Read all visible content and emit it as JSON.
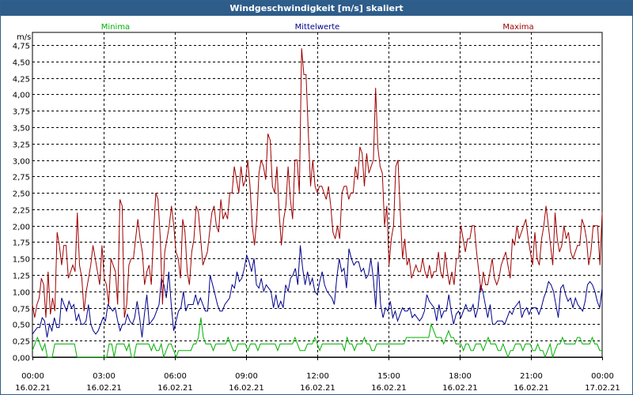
{
  "window": {
    "title": "Windgeschwindigkeit [m/s] skaliert"
  },
  "colors": {
    "min": "#00b000",
    "mean": "#00008b",
    "max": "#a00000",
    "grid": "#000000",
    "titlebar": "#2e5d8a"
  },
  "chart_data": {
    "type": "line",
    "title": "Windgeschwindigkeit [m/s] skaliert",
    "ylabel": "m/s",
    "xlabel": "",
    "ylim": [
      0,
      4.75
    ],
    "grid": true,
    "yticks": [
      0,
      0.25,
      0.5,
      0.75,
      1.0,
      1.25,
      1.5,
      1.75,
      2.0,
      2.25,
      2.5,
      2.75,
      3.0,
      3.25,
      3.5,
      3.75,
      4.0,
      4.25,
      4.5,
      4.75
    ],
    "ytick_labels": [
      "0,00",
      "0,25",
      "0,50",
      "0,75",
      "1,00",
      "1,25",
      "1,50",
      "1,75",
      "2,00",
      "2,25",
      "2,50",
      "2,75",
      "3,00",
      "3,25",
      "3,50",
      "3,75",
      "4,00",
      "4,25",
      "4,50",
      "4,75"
    ],
    "xticks": [
      {
        "time": "00:00",
        "date": "16.02.21"
      },
      {
        "time": "03:00",
        "date": "16.02.21"
      },
      {
        "time": "06:00",
        "date": "16.02.21"
      },
      {
        "time": "09:00",
        "date": "16.02.21"
      },
      {
        "time": "12:00",
        "date": "16.02.21"
      },
      {
        "time": "15:00",
        "date": "16.02.21"
      },
      {
        "time": "18:00",
        "date": "16.02.21"
      },
      {
        "time": "21:00",
        "date": "16.02.21"
      },
      {
        "time": "00:00",
        "date": "17.02.21"
      }
    ],
    "x_range_hours": [
      0,
      24
    ],
    "legend": [
      "Minima",
      "Mittelwerte",
      "Maxima"
    ],
    "series": [
      {
        "name": "Minima",
        "color": "#00b000",
        "values": [
          0.1,
          0.2,
          0.3,
          0.2,
          0.1,
          0.2,
          0.0,
          0.0,
          0.0,
          0.2,
          0.2,
          0.2,
          0.2,
          0.2,
          0.2,
          0.2,
          0.2,
          0.2,
          0.0,
          0.0,
          0.0,
          0.0,
          0.0,
          0.0,
          0.0,
          0.0,
          0.0,
          0.0,
          0.0,
          0.0,
          0.0,
          0.2,
          0.2,
          0.0,
          0.2,
          0.2,
          0.2,
          0.2,
          0.1,
          0.2,
          0.0,
          0.0,
          0.2,
          0.2,
          0.2,
          0.2,
          0.2,
          0.2,
          0.1,
          0.2,
          0.1,
          0.1,
          0.2,
          0.0,
          0.1,
          0.2,
          0.2,
          0.1,
          0.0,
          0.1,
          0.1,
          0.1,
          0.1,
          0.1,
          0.1,
          0.2,
          0.2,
          0.3,
          0.6,
          0.3,
          0.2,
          0.2,
          0.2,
          0.1,
          0.2,
          0.2,
          0.2,
          0.2,
          0.2,
          0.3,
          0.2,
          0.1,
          0.1,
          0.2,
          0.2,
          0.2,
          0.2,
          0.1,
          0.2,
          0.2,
          0.2,
          0.1,
          0.2,
          0.2,
          0.2,
          0.2,
          0.2,
          0.2,
          0.2,
          0.1,
          0.2,
          0.2,
          0.2,
          0.2,
          0.2,
          0.2,
          0.3,
          0.2,
          0.1,
          0.1,
          0.1,
          0.2,
          0.2,
          0.2,
          0.3,
          0.2,
          0.1,
          0.2,
          0.2,
          0.2,
          0.2,
          0.2,
          0.2,
          0.2,
          0.2,
          0.2,
          0.1,
          0.3,
          0.2,
          0.2,
          0.1,
          0.2,
          0.2,
          0.2,
          0.3,
          0.2,
          0.2,
          0.1,
          0.1,
          0.2,
          0.2,
          0.2,
          0.2,
          0.2,
          0.2,
          0.2,
          0.2,
          0.2,
          0.2,
          0.2,
          0.2,
          0.3,
          0.3,
          0.3,
          0.3,
          0.3,
          0.3,
          0.3,
          0.3,
          0.3,
          0.3,
          0.5,
          0.4,
          0.3,
          0.3,
          0.3,
          0.2,
          0.3,
          0.4,
          0.3,
          0.3,
          0.2,
          0.2,
          0.2,
          0.1,
          0.2,
          0.2,
          0.1,
          0.1,
          0.2,
          0.2,
          0.2,
          0.1,
          0.2,
          0.3,
          0.2,
          0.2,
          0.2,
          0.1,
          0.1,
          0.2,
          0.1,
          0.0,
          0.1,
          0.1,
          0.2,
          0.2,
          0.2,
          0.1,
          0.2,
          0.2,
          0.2,
          0.1,
          0.1,
          0.2,
          0.1,
          0.1,
          0.0,
          0.1,
          0.2,
          0.0,
          0.1,
          0.2,
          0.2,
          0.3,
          0.2,
          0.2,
          0.2,
          0.2,
          0.2,
          0.3,
          0.3,
          0.2,
          0.2,
          0.2,
          0.2,
          0.3,
          0.2,
          0.2,
          0.1,
          0.1
        ]
      },
      {
        "name": "Mittelwerte",
        "color": "#00008b",
        "values": [
          0.35,
          0.4,
          0.45,
          0.45,
          0.6,
          0.55,
          0.3,
          0.5,
          0.4,
          0.6,
          0.45,
          0.45,
          0.9,
          0.8,
          0.7,
          0.85,
          0.75,
          0.8,
          0.55,
          0.65,
          0.5,
          0.5,
          0.55,
          0.8,
          0.5,
          0.4,
          0.35,
          0.4,
          0.5,
          0.6,
          0.55,
          0.8,
          0.75,
          0.7,
          0.75,
          0.55,
          0.4,
          0.5,
          0.5,
          0.65,
          0.55,
          0.5,
          0.6,
          0.85,
          0.6,
          0.3,
          0.65,
          0.95,
          0.5,
          0.55,
          0.6,
          0.7,
          0.8,
          1.2,
          1.1,
          0.9,
          1.3,
          0.8,
          0.4,
          0.55,
          0.7,
          0.75,
          1.0,
          0.7,
          0.8,
          0.8,
          0.8,
          0.95,
          0.8,
          0.9,
          0.8,
          0.7,
          0.7,
          1.25,
          1.1,
          0.95,
          0.8,
          0.7,
          0.7,
          0.8,
          0.85,
          0.9,
          1.1,
          1.05,
          1.3,
          1.15,
          1.2,
          1.35,
          1.55,
          1.45,
          1.3,
          1.5,
          1.1,
          1.05,
          1.2,
          1.0,
          1.1,
          1.05,
          1.0,
          0.75,
          0.95,
          0.75,
          0.85,
          0.75,
          1.1,
          1.0,
          1.2,
          1.25,
          1.35,
          1.1,
          1.7,
          1.35,
          1.1,
          1.3,
          1.1,
          1.2,
          1.0,
          0.95,
          1.15,
          1.3,
          1.1,
          1.0,
          0.95,
          0.9,
          0.8,
          1.2,
          1.5,
          1.3,
          1.35,
          1.05,
          1.65,
          1.5,
          1.4,
          1.45,
          1.45,
          1.3,
          1.35,
          1.2,
          1.25,
          1.5,
          1.2,
          0.75,
          1.45,
          0.8,
          0.6,
          0.75,
          0.7,
          0.85,
          0.6,
          0.7,
          0.55,
          0.65,
          0.75,
          0.7,
          0.7,
          0.75,
          0.6,
          0.65,
          0.6,
          0.55,
          0.6,
          0.7,
          0.95,
          0.85,
          0.8,
          0.75,
          0.55,
          0.8,
          0.6,
          0.7,
          0.7,
          0.95,
          0.7,
          0.5,
          0.65,
          0.7,
          0.6,
          0.7,
          0.8,
          0.7,
          0.7,
          0.8,
          0.6,
          0.75,
          1.1,
          1.0,
          0.8,
          0.6,
          0.8,
          0.5,
          0.5,
          0.55,
          0.55,
          0.55,
          0.5,
          0.6,
          0.7,
          0.65,
          0.75,
          0.8,
          0.85,
          0.6,
          0.7,
          0.75,
          0.65,
          0.75,
          0.75,
          0.75,
          0.65,
          0.75,
          0.9,
          1.0,
          1.15,
          1.1,
          1.0,
          0.8,
          0.6,
          1.05,
          1.1,
          0.95,
          0.85,
          0.9,
          0.75,
          0.9,
          0.8,
          0.75,
          0.7,
          0.85,
          1.1,
          1.15,
          1.1,
          1.0,
          0.85,
          0.75,
          1.05
        ]
      },
      {
        "name": "Maxima",
        "color": "#a00000",
        "values": [
          0.8,
          0.6,
          0.8,
          0.9,
          1.2,
          1.1,
          0.6,
          1.3,
          0.65,
          0.9,
          0.7,
          1.9,
          1.7,
          1.4,
          1.7,
          1.7,
          1.2,
          1.3,
          1.4,
          1.3,
          2.2,
          1.4,
          1.2,
          0.7,
          1.0,
          1.2,
          1.4,
          1.7,
          1.5,
          1.3,
          1.1,
          1.7,
          1.2,
          1.1,
          0.8,
          1.5,
          1.4,
          1.3,
          0.8,
          2.4,
          2.3,
          0.6,
          0.8,
          1.4,
          1.5,
          1.5,
          1.8,
          2.1,
          1.8,
          1.6,
          1.1,
          1.3,
          1.4,
          1.1,
          1.9,
          2.5,
          2.4,
          1.8,
          0.8,
          1.6,
          1.8,
          2.0,
          2.3,
          2.0,
          1.6,
          1.5,
          1.2,
          2.1,
          1.9,
          1.3,
          1.1,
          1.6,
          1.8,
          2.3,
          2.2,
          1.8,
          1.4,
          1.5,
          1.6,
          1.9,
          2.2,
          2.3,
          2.0,
          1.9,
          2.4,
          2.1,
          2.2,
          2.1,
          2.5,
          2.5,
          2.9,
          2.7,
          2.5,
          2.9,
          2.6,
          2.7,
          3.0,
          2.6,
          2.0,
          1.7,
          2.1,
          2.8,
          3.0,
          2.9,
          2.7,
          3.4,
          3.3,
          2.6,
          2.5,
          2.9,
          2.2,
          1.7,
          2.1,
          2.3,
          2.9,
          2.4,
          2.1,
          3.0,
          3.0,
          2.5,
          4.7,
          4.3,
          4.3,
          3.4,
          2.6,
          3.0,
          2.6,
          2.5,
          2.6,
          2.6,
          2.5,
          2.4,
          2.6,
          2.3,
          1.9,
          1.8,
          2.0,
          1.8,
          2.5,
          2.6,
          2.6,
          2.4,
          2.5,
          2.5,
          2.9,
          2.7,
          3.2,
          3.1,
          2.6,
          3.1,
          2.8,
          2.9,
          3.0,
          4.1,
          3.2,
          2.9,
          2.8,
          2.0,
          2.3,
          1.4,
          1.8,
          2.0,
          2.9,
          3.0,
          2.2,
          1.5,
          1.8,
          1.4,
          1.5,
          1.2,
          1.3,
          1.4,
          1.3,
          1.3,
          1.5,
          1.3,
          1.2,
          1.4,
          1.2,
          1.3,
          1.3,
          1.6,
          1.3,
          1.2,
          1.6,
          1.3,
          1.1,
          1.3,
          1.1,
          1.5,
          1.5,
          2.0,
          1.8,
          1.6,
          1.8,
          1.8,
          2.0,
          2.0,
          1.6,
          1.3,
          1.0,
          1.3,
          1.1,
          1.1,
          1.3,
          1.5,
          1.2,
          1.1,
          1.2,
          1.4,
          1.5,
          1.6,
          1.4,
          1.2,
          1.8,
          1.7,
          2.0,
          1.8,
          1.9,
          2.0,
          2.1,
          1.8,
          1.6,
          1.4,
          1.9,
          1.5,
          1.4,
          1.8,
          2.0,
          2.3,
          2.0,
          1.7,
          1.4,
          2.2,
          1.8,
          1.6,
          1.7,
          2.0,
          1.8,
          1.9,
          1.6,
          1.5,
          1.6,
          1.7,
          1.7,
          2.1,
          2.0,
          1.8,
          1.4,
          1.6,
          2.0,
          2.0,
          2.0,
          1.4,
          2.2
        ]
      }
    ]
  }
}
